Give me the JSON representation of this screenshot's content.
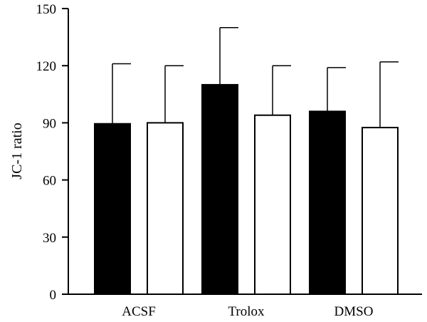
{
  "chart_data": {
    "type": "bar",
    "title": "",
    "xlabel": "",
    "ylabel": "JC-1 ratio",
    "ylim": [
      0,
      150
    ],
    "yticks": [
      0,
      30,
      60,
      90,
      120,
      150
    ],
    "categories": [
      "ACSF",
      "Trolox",
      "DMSO"
    ],
    "grid": false,
    "series": [
      {
        "fill": "#000000",
        "values": [
          89.5,
          110,
          96
        ],
        "error_upper": [
          121,
          140,
          119
        ]
      },
      {
        "fill": "#ffffff",
        "values": [
          90,
          94,
          87.5
        ],
        "error_upper": [
          120,
          120,
          122
        ]
      }
    ]
  }
}
